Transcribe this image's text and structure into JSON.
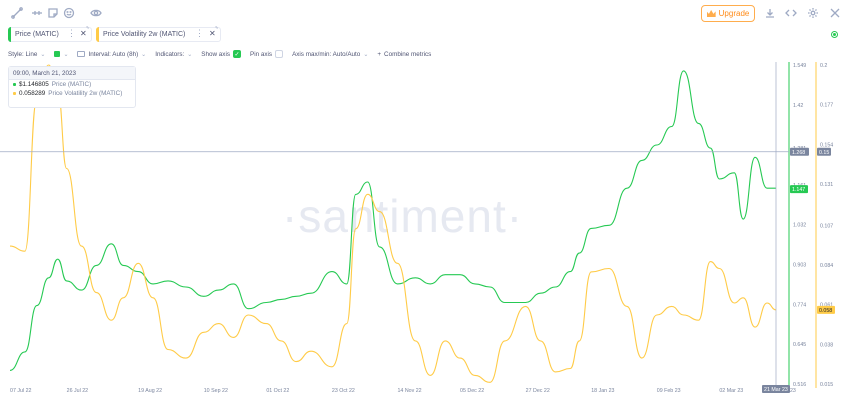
{
  "toolbar": {
    "icons": [
      "line-tool-icon",
      "ruler-icon",
      "note-icon",
      "emoji-icon",
      "eye-icon"
    ],
    "upgrade_label": "Upgrade",
    "right_icons": [
      "download-icon",
      "embed-icon",
      "gear-icon",
      "close-icon"
    ]
  },
  "tabs": [
    {
      "label": "Price (MATIC)",
      "color": "#26C953"
    },
    {
      "label": "Price Volatility 2w (MATIC)",
      "color": "#FFCB47"
    }
  ],
  "settings": {
    "style": "Style: Line",
    "interval": "Interval: Auto (8h)",
    "indicators": "Indicators:",
    "show_axis": "Show axis",
    "pin_axis": "Pin axis",
    "axis_maxmin": "Axis max/min: Auto/Auto",
    "combine": "Combine metrics"
  },
  "tooltip": {
    "date": "09:00, March 21, 2023",
    "rows": [
      {
        "value": "$1.146805",
        "name": "Price (MATIC)",
        "color": "#26C953"
      },
      {
        "value": "0.058289",
        "name": "Price Volatility 2w (MATIC)",
        "color": "#FFCB47"
      }
    ]
  },
  "watermark": "·santiment·",
  "chart_data": {
    "type": "line",
    "x_ticks": [
      "07 Jul 22",
      "26 Jul 22",
      "19 Aug 22",
      "10 Sep 22",
      "01 Oct 22",
      "23 Oct 22",
      "14 Nov 22",
      "05 Dec 22",
      "27 Dec 22",
      "18 Jan 23",
      "09 Feb 23",
      "02 Mar 23",
      "21 Mar 23"
    ],
    "y_ticks_price": [
      "1.549",
      "1.42",
      "1.281",
      "1.161",
      "1.032",
      "0.903",
      "0.774",
      "0.645",
      "0.516"
    ],
    "y_ticks_volatility": [
      "0.2",
      "0.177",
      "0.154",
      "0.131",
      "0.107",
      "0.084",
      "0.061",
      "0.038",
      "0.015"
    ],
    "crosshair": {
      "price": "1.268",
      "volatility": "0.15",
      "date": "21 Mar 23"
    },
    "last_values": {
      "price": "1.147",
      "volatility": "0.058"
    },
    "series": [
      {
        "name": "Price (MATIC)",
        "color": "#26C953",
        "axis": "price",
        "x": [
          "07 Jul 22",
          "12 Jul 22",
          "16 Jul 22",
          "20 Jul 22",
          "23 Jul 22",
          "26 Jul 22",
          "31 Jul 22",
          "05 Aug 22",
          "10 Aug 22",
          "14 Aug 22",
          "19 Aug 22",
          "24 Aug 22",
          "29 Aug 22",
          "04 Sep 22",
          "10 Sep 22",
          "15 Sep 22",
          "20 Sep 22",
          "25 Sep 22",
          "01 Oct 22",
          "06 Oct 22",
          "11 Oct 22",
          "16 Oct 22",
          "23 Oct 22",
          "28 Oct 22",
          "31 Oct 22",
          "04 Nov 22",
          "08 Nov 22",
          "14 Nov 22",
          "20 Nov 22",
          "25 Nov 22",
          "30 Nov 22",
          "05 Dec 22",
          "10 Dec 22",
          "15 Dec 22",
          "20 Dec 22",
          "27 Dec 22",
          "01 Jan 23",
          "06 Jan 23",
          "11 Jan 23",
          "14 Jan 23",
          "18 Jan 23",
          "24 Jan 23",
          "30 Jan 23",
          "04 Feb 23",
          "09 Feb 23",
          "14 Feb 23",
          "18 Feb 23",
          "23 Feb 23",
          "27 Feb 23",
          "02 Mar 23",
          "07 Mar 23",
          "10 Mar 23",
          "14 Mar 23",
          "18 Mar 23",
          "21 Mar 23"
        ],
        "values": [
          0.56,
          0.62,
          0.77,
          0.86,
          0.92,
          0.85,
          0.82,
          0.9,
          0.97,
          0.9,
          0.88,
          0.84,
          0.85,
          0.83,
          0.8,
          0.82,
          0.84,
          0.76,
          0.78,
          0.79,
          0.8,
          0.81,
          0.88,
          0.84,
          1.13,
          1.17,
          0.96,
          0.84,
          0.86,
          0.84,
          0.87,
          0.87,
          0.84,
          0.83,
          0.78,
          0.78,
          0.81,
          0.83,
          0.88,
          0.94,
          1.02,
          1.03,
          1.15,
          1.24,
          1.29,
          1.35,
          1.53,
          1.36,
          1.28,
          1.18,
          1.2,
          1.05,
          1.25,
          1.15,
          1.15
        ]
      },
      {
        "name": "Price Volatility 2w (MATIC)",
        "color": "#FFCB47",
        "axis": "volatility",
        "x": [
          "07 Jul 22",
          "12 Jul 22",
          "16 Jul 22",
          "20 Jul 22",
          "23 Jul 22",
          "26 Jul 22",
          "31 Jul 22",
          "05 Aug 22",
          "10 Aug 22",
          "14 Aug 22",
          "19 Aug 22",
          "24 Aug 22",
          "29 Aug 22",
          "04 Sep 22",
          "10 Sep 22",
          "15 Sep 22",
          "20 Sep 22",
          "25 Sep 22",
          "01 Oct 22",
          "06 Oct 22",
          "11 Oct 22",
          "16 Oct 22",
          "23 Oct 22",
          "28 Oct 22",
          "31 Oct 22",
          "04 Nov 22",
          "08 Nov 22",
          "14 Nov 22",
          "20 Nov 22",
          "25 Nov 22",
          "30 Nov 22",
          "05 Dec 22",
          "10 Dec 22",
          "15 Dec 22",
          "20 Dec 22",
          "27 Dec 22",
          "01 Jan 23",
          "06 Jan 23",
          "11 Jan 23",
          "14 Jan 23",
          "18 Jan 23",
          "24 Jan 23",
          "30 Jan 23",
          "04 Feb 23",
          "09 Feb 23",
          "14 Feb 23",
          "18 Feb 23",
          "23 Feb 23",
          "27 Feb 23",
          "02 Mar 23",
          "07 Mar 23",
          "10 Mar 23",
          "14 Mar 23",
          "18 Mar 23",
          "21 Mar 23"
        ],
        "values": [
          0.095,
          0.092,
          0.18,
          0.2,
          0.185,
          0.14,
          0.095,
          0.068,
          0.052,
          0.065,
          0.085,
          0.065,
          0.035,
          0.03,
          0.045,
          0.05,
          0.042,
          0.055,
          0.05,
          0.04,
          0.028,
          0.034,
          0.025,
          0.05,
          0.105,
          0.125,
          0.115,
          0.085,
          0.04,
          0.02,
          0.04,
          0.03,
          0.02,
          0.016,
          0.04,
          0.06,
          0.04,
          0.022,
          0.024,
          0.04,
          0.08,
          0.082,
          0.06,
          0.03,
          0.055,
          0.06,
          0.055,
          0.052,
          0.086,
          0.082,
          0.062,
          0.065,
          0.048,
          0.062,
          0.058
        ]
      }
    ]
  }
}
